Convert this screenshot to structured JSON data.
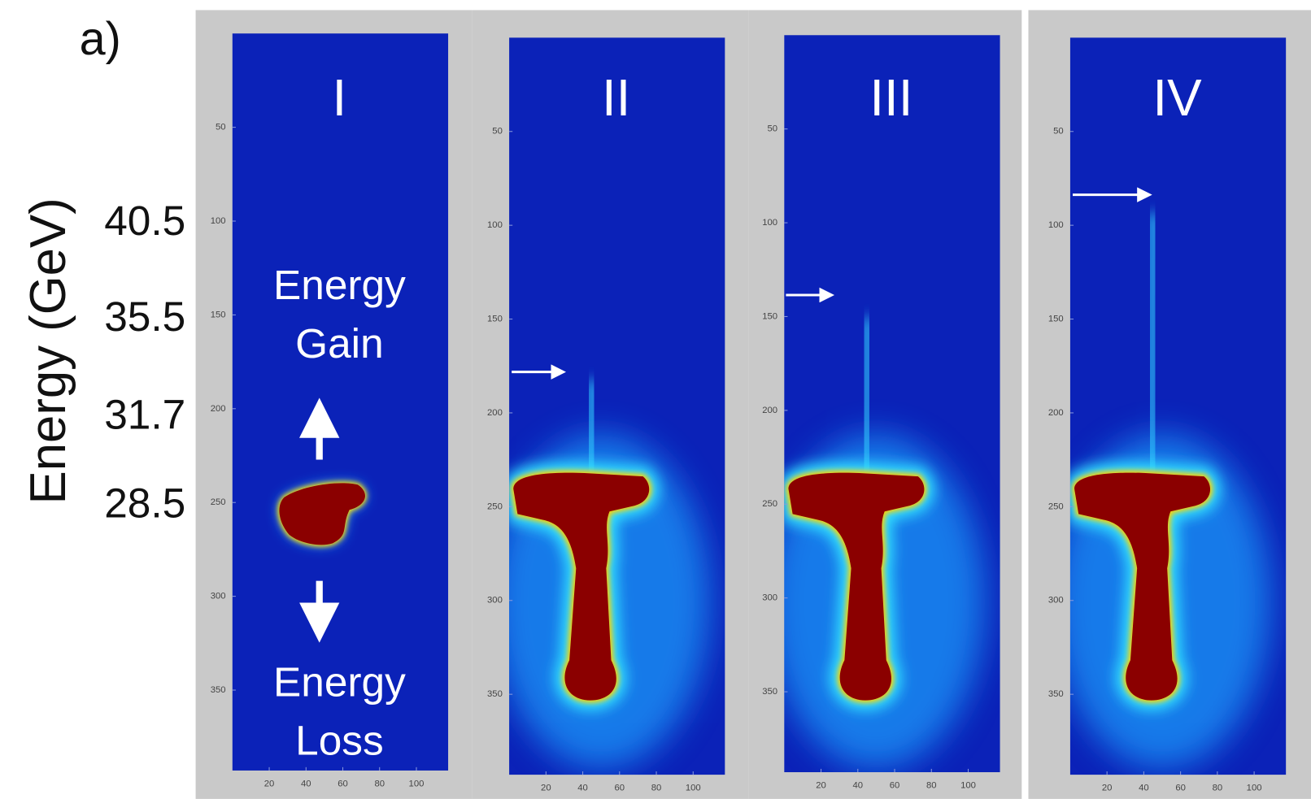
{
  "figure": {
    "label": "a)",
    "y_axis_title": "Energy (GeV)",
    "energy_labels": [
      "40.5",
      "35.5",
      "31.7",
      "28.5"
    ],
    "panels": [
      {
        "title": "I",
        "yticks": [
          50,
          100,
          150,
          200,
          250,
          300,
          350
        ],
        "xticks": [
          20,
          40,
          60,
          80,
          100
        ]
      },
      {
        "title": "II",
        "yticks": [
          50,
          100,
          150,
          200,
          250,
          300,
          350
        ],
        "xticks": [
          20,
          40,
          60,
          80,
          100
        ]
      },
      {
        "title": "III",
        "yticks": [
          50,
          100,
          150,
          200,
          250,
          300,
          350
        ],
        "xticks": [
          20,
          40,
          60,
          80,
          100
        ]
      },
      {
        "title": "IV",
        "yticks": [
          50,
          100,
          150,
          200,
          250,
          300,
          350
        ],
        "xticks": [
          20,
          40,
          60,
          80,
          100
        ]
      }
    ],
    "annotations": [
      {
        "lines": [
          "Energy",
          "Gain"
        ]
      },
      {
        "lines": [
          "Energy",
          "Loss"
        ]
      }
    ]
  }
}
